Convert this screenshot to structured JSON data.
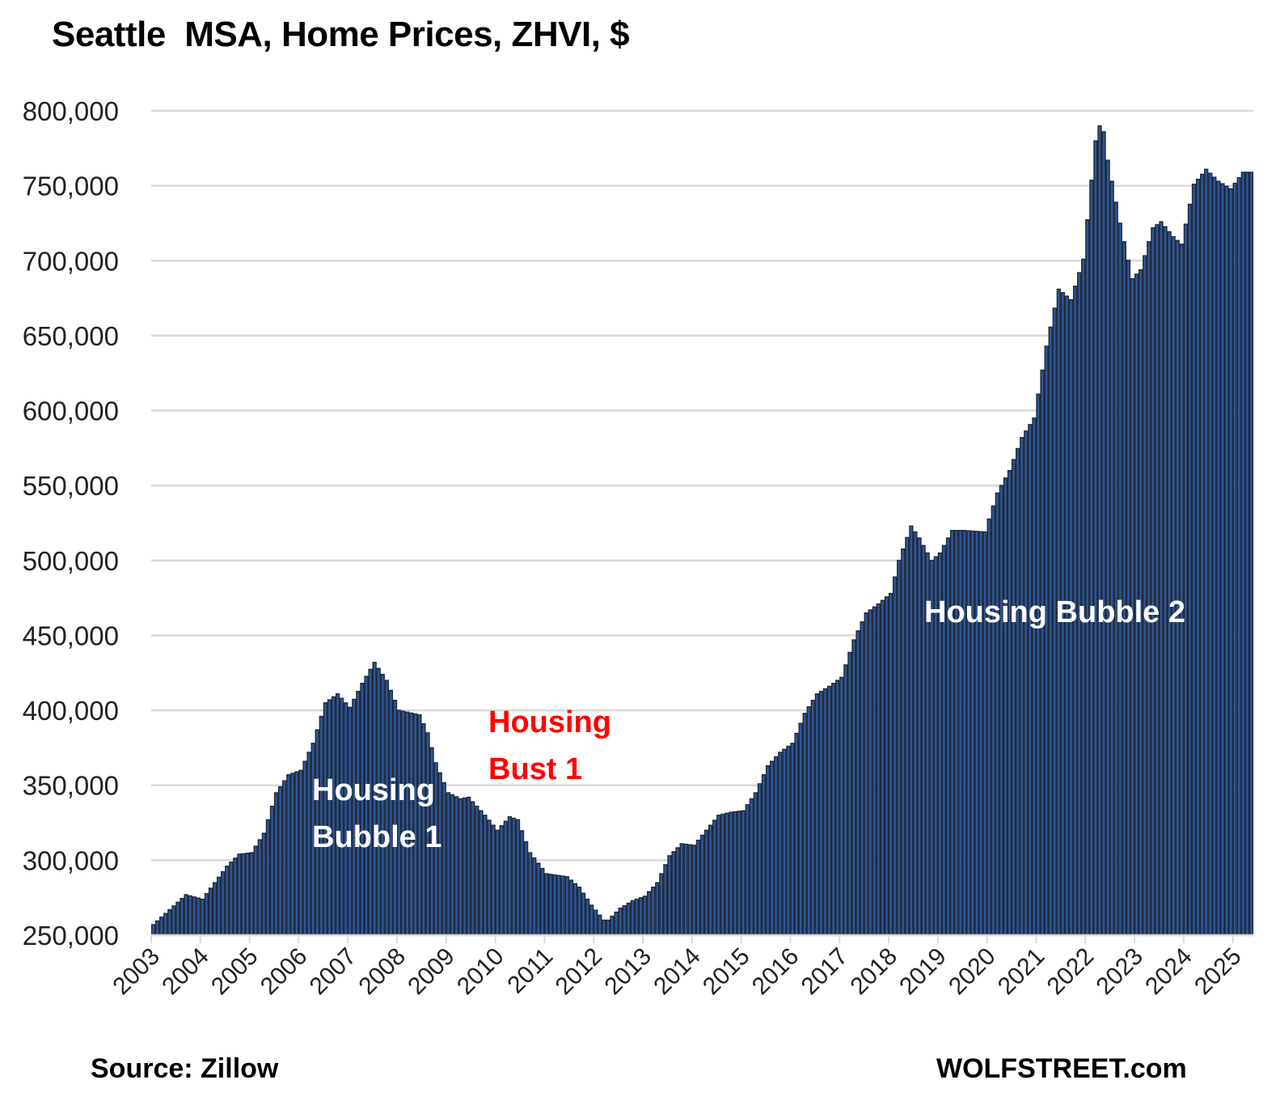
{
  "chart_data": {
    "type": "bar",
    "title": "Seattle  MSA, Home Prices, ZHVI, $",
    "xlabel": "",
    "ylabel": "",
    "frequency": "monthly",
    "x_start": "2003-01",
    "x_end": "2025-05",
    "ylim": [
      250000,
      800000
    ],
    "yticks": [
      250000,
      300000,
      350000,
      400000,
      450000,
      500000,
      550000,
      600000,
      650000,
      700000,
      750000,
      800000
    ],
    "ytick_labels": [
      "250,000",
      "300,000",
      "350,000",
      "400,000",
      "450,000",
      "500,000",
      "550,000",
      "600,000",
      "650,000",
      "700,000",
      "750,000",
      "800,000"
    ],
    "xtick_labels": [
      "2003",
      "2004",
      "2005",
      "2006",
      "2007",
      "2008",
      "2009",
      "2010",
      "2011",
      "2012",
      "2013",
      "2014",
      "2015",
      "2016",
      "2017",
      "2018",
      "2019",
      "2020",
      "2021",
      "2022",
      "2023",
      "2024",
      "2025"
    ],
    "grid": true,
    "series": [
      {
        "name": "ZHVI",
        "color": "#2f5597",
        "points": [
          [
            "2003-01",
            257000
          ],
          [
            "2003-09",
            277000
          ],
          [
            "2004-01",
            274000
          ],
          [
            "2004-07",
            296000
          ],
          [
            "2004-10",
            304000
          ],
          [
            "2005-01",
            305000
          ],
          [
            "2005-04",
            318000
          ],
          [
            "2005-07",
            345000
          ],
          [
            "2005-10",
            357000
          ],
          [
            "2006-01",
            360000
          ],
          [
            "2006-04",
            378000
          ],
          [
            "2006-07",
            405000
          ],
          [
            "2006-10",
            411000
          ],
          [
            "2007-01",
            402000
          ],
          [
            "2007-04",
            418000
          ],
          [
            "2007-07",
            432000
          ],
          [
            "2007-10",
            420000
          ],
          [
            "2008-01",
            400000
          ],
          [
            "2008-06",
            397000
          ],
          [
            "2008-08",
            385000
          ],
          [
            "2008-10",
            365000
          ],
          [
            "2009-01",
            345000
          ],
          [
            "2009-04",
            341000
          ],
          [
            "2009-06",
            342000
          ],
          [
            "2009-10",
            330000
          ],
          [
            "2010-01",
            320000
          ],
          [
            "2010-04",
            329000
          ],
          [
            "2010-06",
            327000
          ],
          [
            "2010-09",
            305000
          ],
          [
            "2011-01",
            291000
          ],
          [
            "2011-06",
            289000
          ],
          [
            "2011-09",
            282000
          ],
          [
            "2011-12",
            270000
          ],
          [
            "2012-03",
            260000
          ],
          [
            "2012-04",
            260000
          ],
          [
            "2012-07",
            268000
          ],
          [
            "2012-10",
            273000
          ],
          [
            "2013-01",
            276000
          ],
          [
            "2013-04",
            285000
          ],
          [
            "2013-07",
            303000
          ],
          [
            "2013-10",
            311000
          ],
          [
            "2014-01",
            310000
          ],
          [
            "2014-04",
            320000
          ],
          [
            "2014-07",
            330000
          ],
          [
            "2014-10",
            332000
          ],
          [
            "2015-01",
            333000
          ],
          [
            "2015-04",
            345000
          ],
          [
            "2015-07",
            363000
          ],
          [
            "2015-10",
            372000
          ],
          [
            "2016-01",
            378000
          ],
          [
            "2016-04",
            398000
          ],
          [
            "2016-07",
            411000
          ],
          [
            "2016-10",
            416000
          ],
          [
            "2017-01",
            422000
          ],
          [
            "2017-04",
            447000
          ],
          [
            "2017-07",
            465000
          ],
          [
            "2017-10",
            471000
          ],
          [
            "2018-01",
            478000
          ],
          [
            "2018-03",
            500000
          ],
          [
            "2018-06",
            523000
          ],
          [
            "2018-08",
            515000
          ],
          [
            "2018-11",
            500000
          ],
          [
            "2019-01",
            505000
          ],
          [
            "2019-04",
            520000
          ],
          [
            "2019-07",
            520000
          ],
          [
            "2019-12",
            519000
          ],
          [
            "2020-03",
            545000
          ],
          [
            "2020-06",
            560000
          ],
          [
            "2020-09",
            582000
          ],
          [
            "2020-12",
            595000
          ],
          [
            "2021-03",
            643000
          ],
          [
            "2021-06",
            681000
          ],
          [
            "2021-09",
            674000
          ],
          [
            "2021-12",
            701000
          ],
          [
            "2022-03",
            780000
          ],
          [
            "2022-04",
            790000
          ],
          [
            "2022-05",
            786000
          ],
          [
            "2022-06",
            767000
          ],
          [
            "2022-09",
            725000
          ],
          [
            "2022-12",
            688000
          ],
          [
            "2023-02",
            694000
          ],
          [
            "2023-05",
            722000
          ],
          [
            "2023-07",
            726000
          ],
          [
            "2023-10",
            716000
          ],
          [
            "2023-12",
            711000
          ],
          [
            "2024-03",
            751000
          ],
          [
            "2024-06",
            761000
          ],
          [
            "2024-09",
            753000
          ],
          [
            "2024-12",
            748000
          ],
          [
            "2025-03",
            759000
          ],
          [
            "2025-05",
            759000
          ]
        ]
      }
    ],
    "annotations": [
      {
        "text_lines": [
          "Housing",
          "Bubble 1"
        ],
        "color": "#ffffff"
      },
      {
        "text_lines": [
          "Housing",
          "Bust 1"
        ],
        "color": "#ff0000"
      },
      {
        "text_lines": [
          "Housing Bubble 2"
        ],
        "color": "#ffffff"
      }
    ],
    "source": "Source: Zillow",
    "brand": "WOLFSTREET.com"
  }
}
